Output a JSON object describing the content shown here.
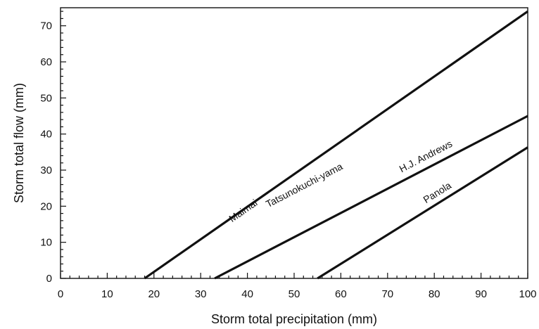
{
  "chart_data": {
    "type": "line",
    "xlabel": "Storm total precipitation (mm)",
    "ylabel": "Storm total flow (mm)",
    "xlim": [
      0,
      100
    ],
    "ylim": [
      0,
      75
    ],
    "x_ticks": [
      0,
      10,
      20,
      30,
      40,
      50,
      60,
      70,
      80,
      90,
      100
    ],
    "y_ticks": [
      0,
      10,
      20,
      30,
      40,
      50,
      60,
      70
    ],
    "grid": false,
    "legend": "none",
    "series": [
      {
        "name": "Maimai",
        "x": [
          18,
          100
        ],
        "y": [
          0,
          74
        ]
      },
      {
        "name": "Tatsunokuchi-yama",
        "x": [
          33,
          100
        ],
        "y": [
          0,
          45
        ]
      },
      {
        "name": "H.J. Andrews",
        "x": [
          33,
          100
        ],
        "y": [
          0,
          45
        ]
      },
      {
        "name": "Panola",
        "x": [
          55,
          100
        ],
        "y": [
          0,
          36.3
        ]
      }
    ],
    "annotations": [
      {
        "text": "Maimai",
        "x": 39.5,
        "y": 18,
        "series": "Maimai"
      },
      {
        "text": "Tatsunokuchi-yama",
        "x": 52.5,
        "y": 25,
        "series": "Tatsunokuchi-yama"
      },
      {
        "text": "H.J. Andrews",
        "x": 78.5,
        "y": 33,
        "series": "H.J. Andrews"
      },
      {
        "text": "Panola",
        "x": 81,
        "y": 23,
        "series": "Panola"
      }
    ]
  }
}
